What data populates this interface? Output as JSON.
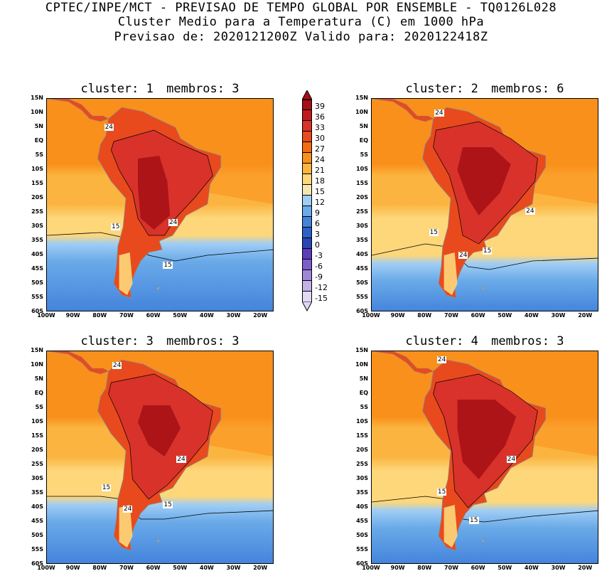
{
  "header": {
    "line1": "CPTEC/INPE/MCT - PREVISAO DE TEMPO GLOBAL POR ENSEMBLE - TQ0126L028",
    "line2": "Cluster Medio para a Temperatura (C) em 1000 hPa",
    "line3": "Previsao de: 2020121200Z   Valido para: 2020122418Z"
  },
  "panels": [
    {
      "cluster_label": "cluster: 1",
      "members_label": "membros: 3",
      "contours": [
        {
          "text": "24"
        },
        {
          "text": "24"
        },
        {
          "text": "15"
        },
        {
          "text": "15"
        }
      ]
    },
    {
      "cluster_label": "cluster: 2",
      "members_label": "membros: 6",
      "contours": [
        {
          "text": "24"
        },
        {
          "text": "24"
        },
        {
          "text": "24"
        },
        {
          "text": "15"
        },
        {
          "text": "15"
        }
      ]
    },
    {
      "cluster_label": "cluster: 3",
      "members_label": "membros: 3",
      "contours": [
        {
          "text": "24"
        },
        {
          "text": "24"
        },
        {
          "text": "24"
        },
        {
          "text": "15"
        },
        {
          "text": "15"
        }
      ]
    },
    {
      "cluster_label": "cluster: 4",
      "members_label": "membros: 3",
      "contours": [
        {
          "text": "24"
        },
        {
          "text": "24"
        },
        {
          "text": "15"
        },
        {
          "text": "15"
        }
      ]
    }
  ],
  "lat_labels": [
    "15N",
    "10N",
    "5N",
    "EQ",
    "5S",
    "10S",
    "15S",
    "20S",
    "25S",
    "30S",
    "35S",
    "40S",
    "45S",
    "50S",
    "55S",
    "60S"
  ],
  "lon_labels": [
    "100W",
    "90W",
    "80W",
    "70W",
    "60W",
    "50W",
    "40W",
    "30W",
    "20W"
  ],
  "colorbar": {
    "levels": [
      "39",
      "36",
      "33",
      "30",
      "27",
      "24",
      "21",
      "18",
      "15",
      "12",
      "9",
      "6",
      "3",
      "0",
      "-3",
      "-6",
      "-9",
      "-12",
      "-15"
    ],
    "colors": [
      "#a50f15",
      "#c21b1b",
      "#d8322a",
      "#e84a1d",
      "#f36a13",
      "#f9901b",
      "#fbb43f",
      "#fdd77a",
      "#f4e7b0",
      "#9fcdf5",
      "#6aaae8",
      "#4383dc",
      "#2c61c8",
      "#2a45b5",
      "#5a3dba",
      "#7d5ccc",
      "#9f86d9",
      "#c2b2e7",
      "#e1d8f3"
    ]
  },
  "map_colors": {
    "ocean_warm": "#f9901b",
    "ocean_mid": "#fbb43f",
    "ocean_cool": "#fdd77a",
    "ocean_cold1": "#9fcdf5",
    "ocean_cold2": "#6aaae8",
    "ocean_cold3": "#4383dc",
    "land_hot": "#d8322a",
    "land_very_hot": "#a50f15",
    "land_warm": "#e84a1d"
  }
}
